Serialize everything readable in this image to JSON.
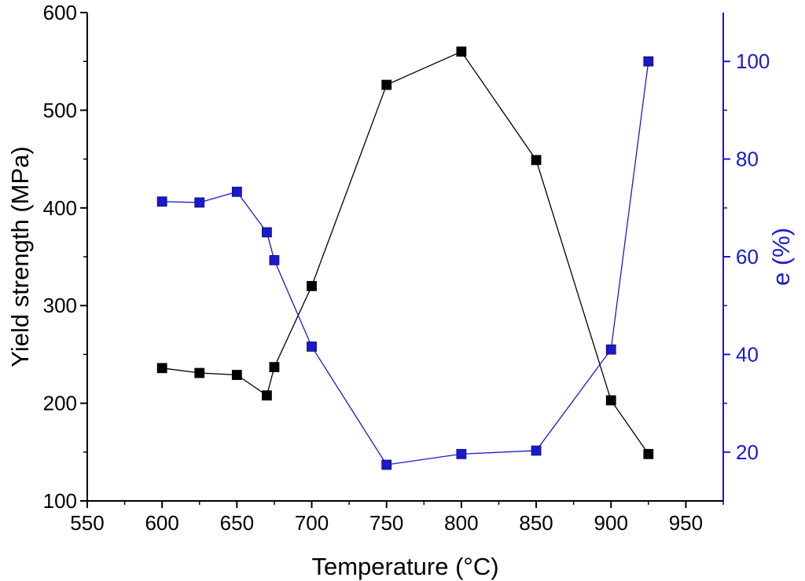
{
  "chart_data": {
    "type": "line",
    "title": "",
    "xlabel": "Temperature (°C)",
    "ylabel": "Yield strength (MPa)",
    "y2label": "e (%)",
    "xlim": [
      550,
      975
    ],
    "ylim": [
      100,
      600
    ],
    "y2lim": [
      10,
      110
    ],
    "x_ticks": [
      550,
      600,
      650,
      700,
      750,
      800,
      850,
      900,
      950
    ],
    "y_ticks": [
      100,
      200,
      300,
      400,
      500,
      600
    ],
    "y2_ticks": [
      20,
      40,
      60,
      80,
      100
    ],
    "grid": false,
    "series": [
      {
        "axis": "left",
        "color": "#000000",
        "marker": "square",
        "points": [
          [
            600,
            236
          ],
          [
            625,
            231
          ],
          [
            650,
            229
          ],
          [
            670,
            208
          ],
          [
            675,
            237
          ],
          [
            700,
            320
          ],
          [
            750,
            526
          ],
          [
            800,
            560
          ],
          [
            850,
            449
          ],
          [
            900,
            203
          ],
          [
            925,
            148
          ]
        ]
      },
      {
        "axis": "right",
        "color": "#1a1acc",
        "marker": "square",
        "points": [
          [
            600,
            71.3
          ],
          [
            625,
            71.1
          ],
          [
            650,
            73.3
          ],
          [
            670,
            65.0
          ],
          [
            675,
            59.3
          ],
          [
            700,
            41.6
          ],
          [
            750,
            17.4
          ],
          [
            800,
            19.6
          ],
          [
            850,
            20.3
          ],
          [
            900,
            41.0
          ],
          [
            925,
            100.0
          ]
        ]
      }
    ]
  },
  "colors": {
    "axis": "#000000",
    "right_axis": "#1a1acc",
    "series_black": "#000000",
    "series_blue": "#1a1acc"
  }
}
